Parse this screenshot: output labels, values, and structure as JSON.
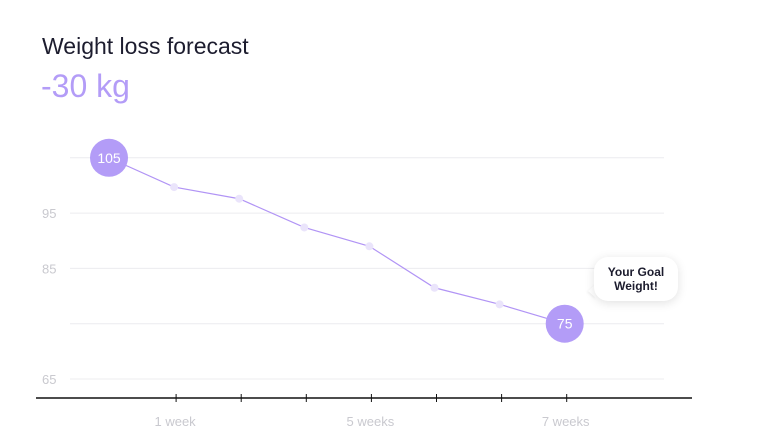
{
  "chart_data": {
    "type": "line",
    "title": "Weight loss forecast",
    "subtitle": "-30 kg",
    "y_ticks": [
      95,
      85,
      65
    ],
    "ylim": [
      63,
      106
    ],
    "x_tick_labels": [
      "1 week",
      "5 weeks",
      "7 weeks"
    ],
    "series": [
      {
        "x": [
          0,
          1,
          2,
          3,
          4,
          5,
          6,
          7
        ],
        "values": [
          105,
          99.7,
          97.6,
          92.4,
          89.0,
          81.5,
          78.5,
          75
        ]
      }
    ],
    "start_label": "105",
    "end_label": "75",
    "goal_callout": "Your Goal Weight!",
    "grid": true,
    "colors": {
      "line": "#b194f5",
      "marker": "#b39cf7",
      "point": "#eae4fb",
      "grid": "#ececef",
      "axis": "#111111"
    }
  }
}
